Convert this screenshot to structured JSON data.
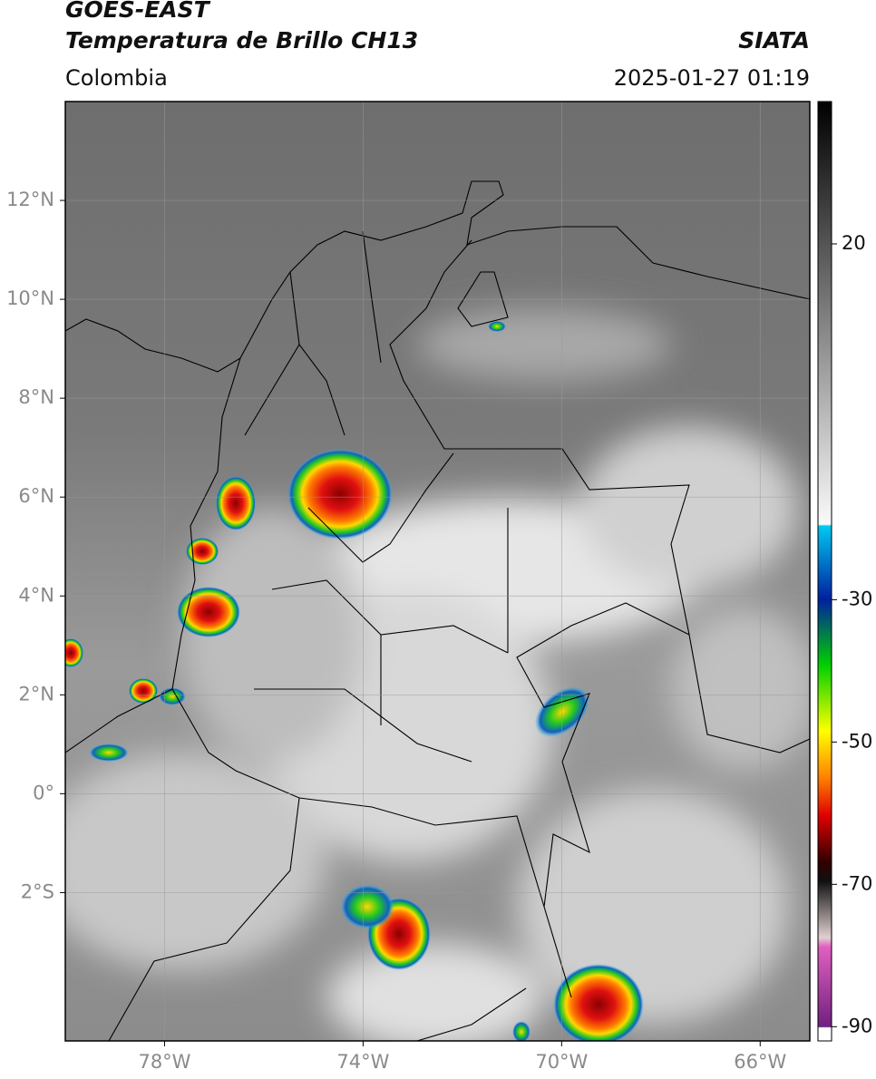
{
  "header": {
    "satellite": "GOES-EAST",
    "product": "Temperatura de Brillo CH13",
    "region": "Colombia",
    "source": "SIATA",
    "datetime": "2025-01-27 01:19"
  },
  "map": {
    "xlim": [
      -80,
      -65
    ],
    "ylim": [
      -5,
      14
    ],
    "xticks": [
      {
        "value": -78,
        "label": "78°W"
      },
      {
        "value": -74,
        "label": "74°W"
      },
      {
        "value": -70,
        "label": "70°W"
      },
      {
        "value": -66,
        "label": "66°W"
      }
    ],
    "yticks": [
      {
        "value": 12,
        "label": "12°N"
      },
      {
        "value": 10,
        "label": "10°N"
      },
      {
        "value": 8,
        "label": "8°N"
      },
      {
        "value": 6,
        "label": "6°N"
      },
      {
        "value": 4,
        "label": "4°N"
      },
      {
        "value": 2,
        "label": "2°N"
      },
      {
        "value": 0,
        "label": "0°"
      },
      {
        "value": -2,
        "label": "2°S"
      }
    ],
    "grid": true
  },
  "colorbar": {
    "lim": [
      -92,
      40
    ],
    "ticks": [
      20,
      -30,
      -50,
      -70,
      -90
    ]
  }
}
